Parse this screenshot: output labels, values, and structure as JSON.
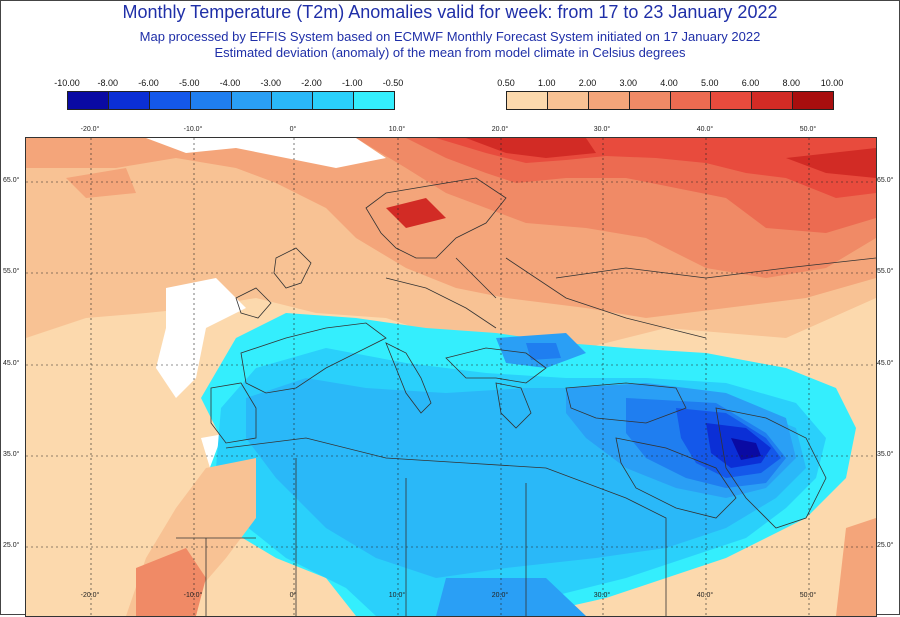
{
  "header": {
    "title": "Monthly Temperature (T2m) Anomalies valid for week: from 17 to 23 January 2022",
    "subtitle1": "Map processed by EFFIS System based on ECMWF Monthly Forecast System initiated on 17 January 2022",
    "subtitle2": "Estimated deviation (anomaly) of the mean from model climate in Celsius degrees"
  },
  "legend": {
    "negative": {
      "ticks": [
        "-10.00",
        "-8.00",
        "-6.00",
        "-5.00",
        "-4.00",
        "-3.00",
        "-2.00",
        "-1.00",
        "-0.50"
      ],
      "colors": [
        "#0a0aa3",
        "#0b2fd6",
        "#1458ea",
        "#1f7ef0",
        "#2a9ff5",
        "#2ab8f8",
        "#2ad0fb",
        "#34eefd"
      ]
    },
    "positive": {
      "ticks": [
        "0.50",
        "1.00",
        "2.00",
        "3.00",
        "4.00",
        "5.00",
        "6.00",
        "8.00",
        "10.00"
      ],
      "colors": [
        "#fcd9ad",
        "#f8c294",
        "#f4a57a",
        "#f08a66",
        "#ec6b51",
        "#e84b3d",
        "#d22b25",
        "#a80e0e"
      ]
    }
  },
  "map": {
    "lon_labels": [
      "-20.0°",
      "-10.0°",
      "0°",
      "10.0°",
      "20.0°",
      "30.0°",
      "40.0°",
      "50.0°"
    ],
    "lat_labels": [
      "65.0°",
      "55.0°",
      "45.0°",
      "35.0°",
      "25.0°"
    ],
    "colors": {
      "white": "#ffffff",
      "pale": "#fcd9ad",
      "light_orange": "#f8c294",
      "orange": "#f4a57a",
      "dark_orange": "#f08a66",
      "red_light": "#ec6b51",
      "red": "#e84b3d",
      "dark_red": "#d22b25",
      "cyan": "#34eefd",
      "light_blue": "#2ad0fb",
      "sky": "#2ab8f8",
      "blue": "#2a9ff5",
      "mid_blue": "#1f7ef0",
      "deep_blue": "#1458ea",
      "darker_blue": "#0b2fd6",
      "navy": "#0a0aa3",
      "land_border": "#333333",
      "grid": "#222222"
    }
  }
}
